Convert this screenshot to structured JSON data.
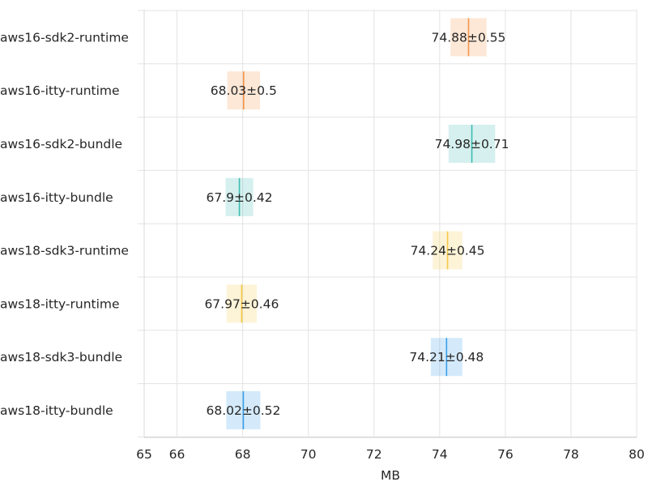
{
  "chart_data": {
    "type": "bar",
    "orientation": "horizontal",
    "categories": [
      "aws16-sdk2-runtime",
      "aws16-itty-runtime",
      "aws16-sdk2-bundle",
      "aws16-itty-bundle",
      "aws18-sdk3-runtime",
      "aws18-itty-runtime",
      "aws18-sdk3-bundle",
      "aws18-itty-bundle"
    ],
    "values": [
      74.88,
      68.03,
      74.98,
      67.9,
      74.24,
      67.97,
      74.21,
      68.02
    ],
    "errors": [
      0.55,
      0.5,
      0.71,
      0.42,
      0.45,
      0.46,
      0.48,
      0.52
    ],
    "value_labels": [
      "74.88±0.55",
      "68.03±0.5",
      "74.98±0.71",
      "67.9±0.42",
      "74.24±0.45",
      "67.97±0.46",
      "74.21±0.48",
      "68.02±0.52"
    ],
    "colors": [
      "#f5964a",
      "#f5964a",
      "#3fbcb1",
      "#3fbcb1",
      "#f5c847",
      "#f5c847",
      "#3aa0ea",
      "#3aa0ea"
    ],
    "xlabel": "MB",
    "ylabel": "",
    "title": "",
    "xlim": [
      65,
      80
    ],
    "xticks": [
      65,
      66,
      68,
      70,
      72,
      74,
      76,
      78,
      80
    ],
    "grid": true,
    "legend": "none"
  }
}
